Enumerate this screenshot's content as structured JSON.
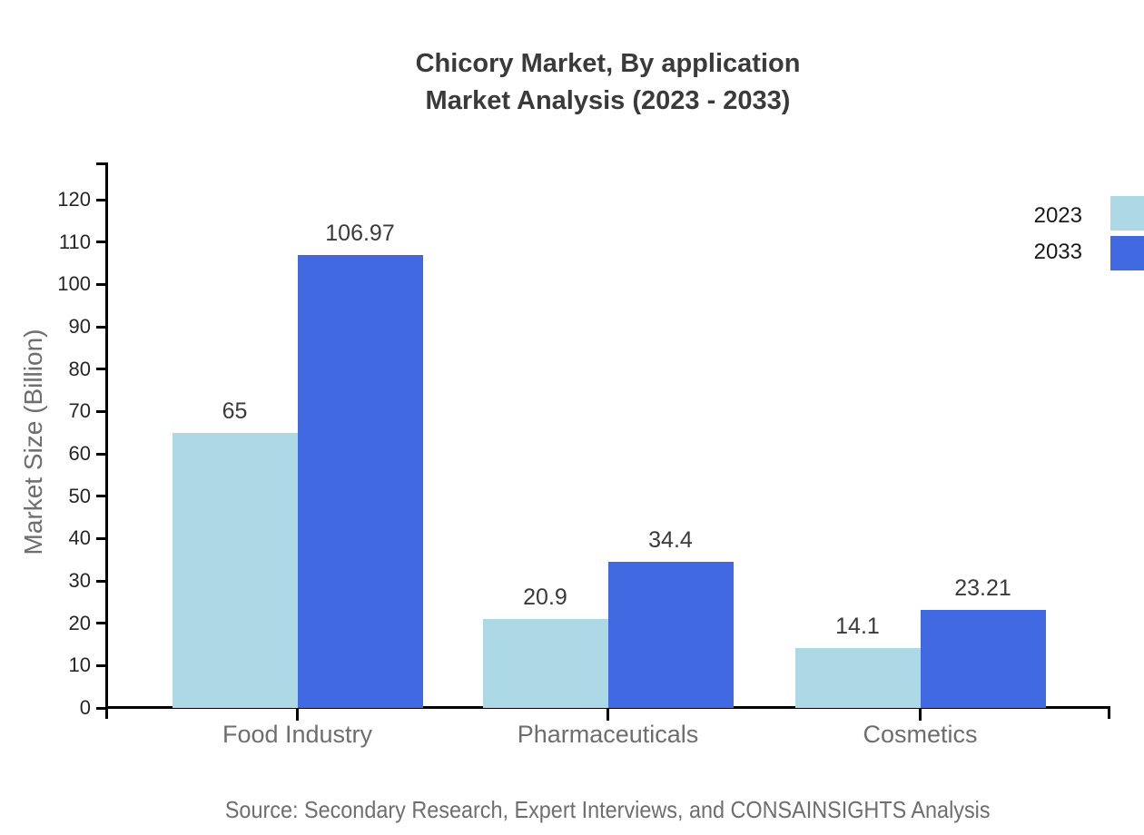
{
  "page": {
    "background": "#ffffff"
  },
  "title": {
    "line1": "Chicory Market, By application",
    "line2": "Market Analysis (2023 - 2033)"
  },
  "source_note": "Source: Secondary Research, Expert Interviews, and CONSAINSIGHTS Analysis",
  "chart_data": {
    "type": "bar",
    "title": "Chicory Market, By application Market Analysis (2023 - 2033)",
    "categories": [
      "Food Industry",
      "Pharmaceuticals",
      "Cosmetics"
    ],
    "series": [
      {
        "name": "2023",
        "color": "#ADD8E6",
        "values": [
          65,
          20.9,
          14.1
        ]
      },
      {
        "name": "2033",
        "color": "#4169E1",
        "values": [
          106.97,
          34.4,
          23.21
        ]
      }
    ],
    "xlabel": "",
    "ylabel": "Market Size (Billion)",
    "ylim": [
      0,
      128
    ],
    "yticks": [
      0,
      10,
      20,
      30,
      40,
      50,
      60,
      70,
      80,
      90,
      100,
      110,
      120
    ],
    "grid": false,
    "bar_value_labels": true,
    "legend_position": "upper-right"
  },
  "colors": {
    "bar_2023": "#ADD8E6",
    "bar_2033": "#4169E1",
    "axis_line": "#000000",
    "title_text": "#3a3a3a",
    "tick_text": "#262626",
    "category_text": "#6e6e6e",
    "ylabel_text": "#6e6e6e",
    "source_text": "#6e6e6e",
    "value_label_text": "#3a3a3a",
    "legend_text": "#1a1a1a"
  }
}
